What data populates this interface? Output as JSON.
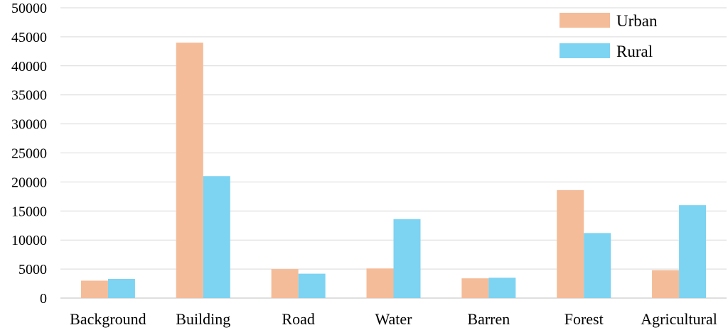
{
  "chart_data": {
    "type": "bar",
    "title": "",
    "xlabel": "",
    "ylabel": "",
    "categories": [
      "Background",
      "Building",
      "Road",
      "Water",
      "Barren",
      "Forest",
      "Agricultural"
    ],
    "series": [
      {
        "name": "Urban",
        "color": "#F4BC98",
        "values": [
          3000,
          44000,
          5000,
          5100,
          3400,
          18600,
          4800
        ]
      },
      {
        "name": "Rural",
        "color": "#7DD3F2",
        "values": [
          3300,
          21000,
          4200,
          13600,
          3500,
          11200,
          16000
        ]
      }
    ],
    "ylim": [
      0,
      50000
    ],
    "yticks": [
      0,
      5000,
      10000,
      15000,
      20000,
      25000,
      30000,
      35000,
      40000,
      45000,
      50000
    ],
    "grid": true,
    "legend_position": "top-right"
  }
}
